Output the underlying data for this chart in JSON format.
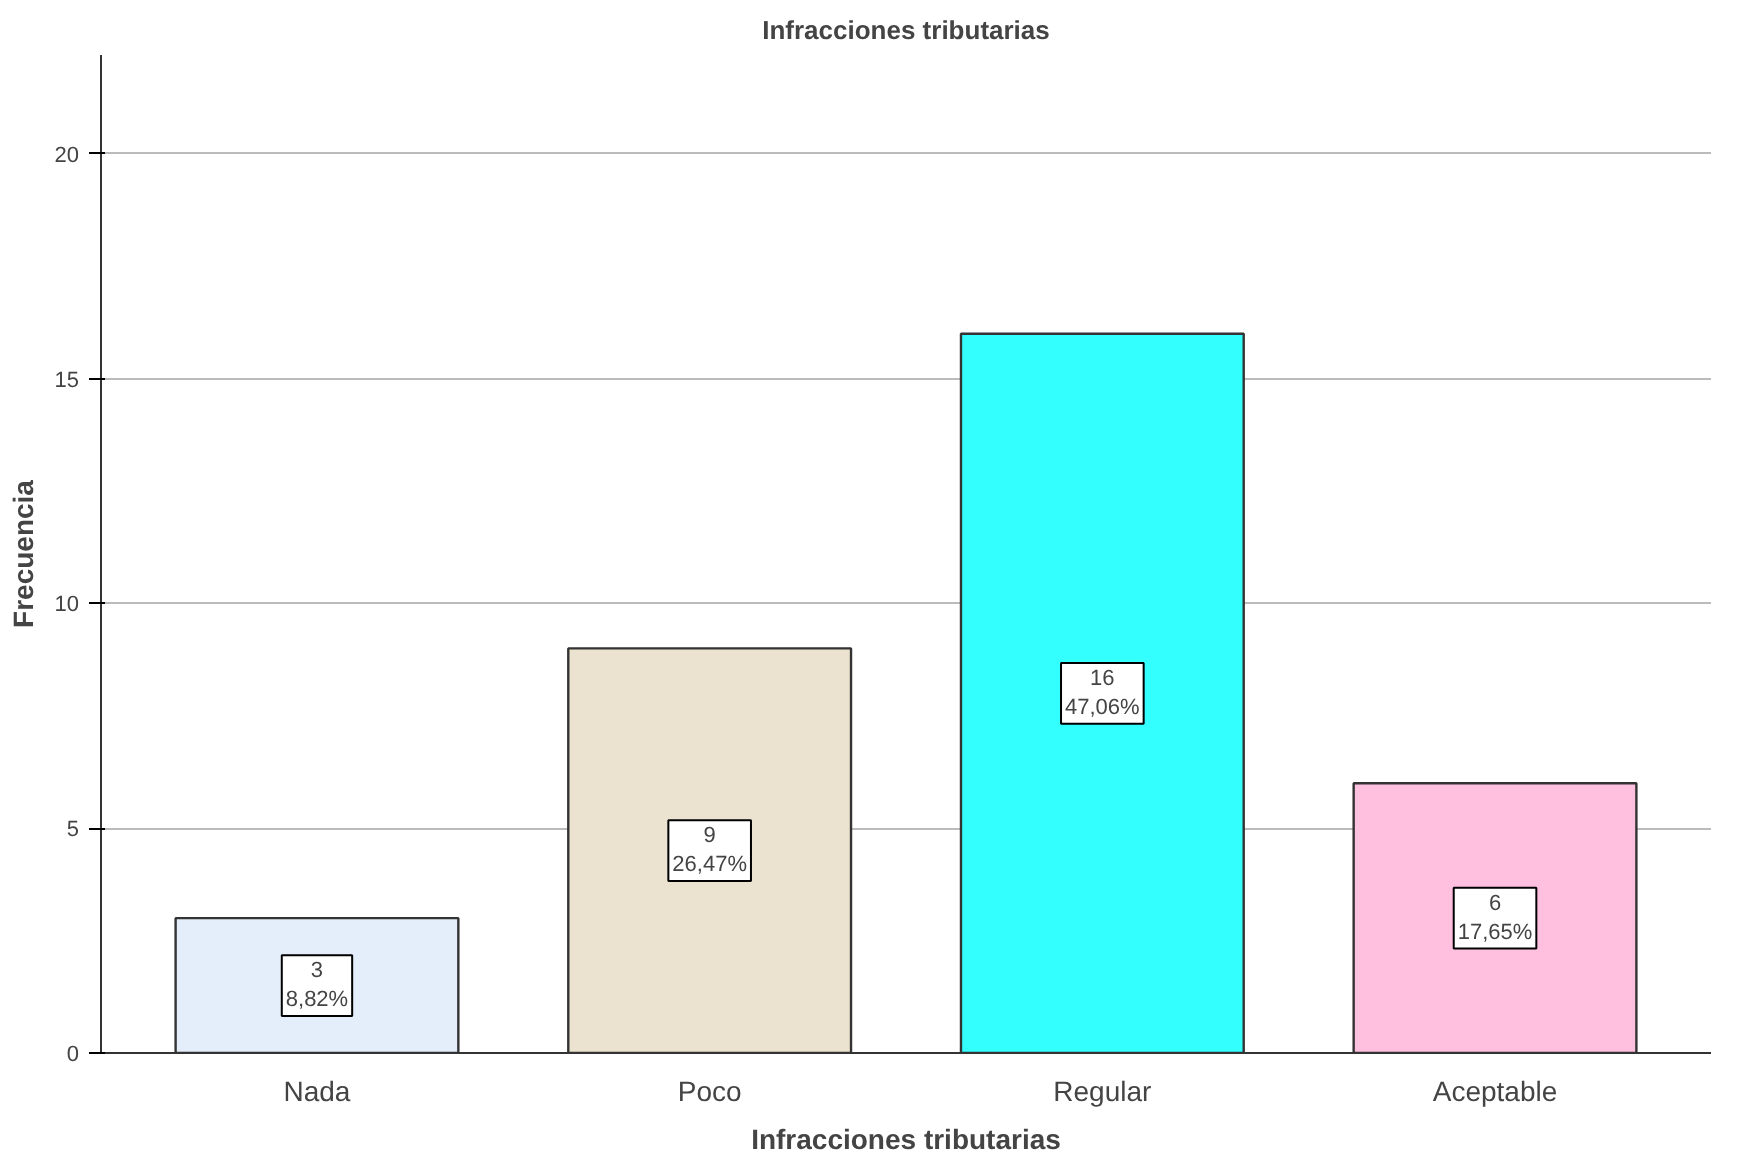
{
  "chart_data": {
    "type": "bar",
    "title": "Infracciones tributarias",
    "xlabel": "Infracciones tributarias",
    "ylabel": "Frecuencia",
    "categories": [
      "Nada",
      "Poco",
      "Regular",
      "Aceptable"
    ],
    "values": [
      3,
      9,
      16,
      6
    ],
    "colors": [
      "#e3eefa",
      "#ebe3cf",
      "#33ffff",
      "#ffc0e0"
    ],
    "value_labels": [
      "3\n8,82%",
      "9\n26,47%",
      "16\n47,06%",
      "6\n17,65%"
    ],
    "ylim": [
      0,
      22.2
    ],
    "yticks": [
      0,
      5,
      10,
      15,
      20
    ],
    "grid": "y"
  }
}
